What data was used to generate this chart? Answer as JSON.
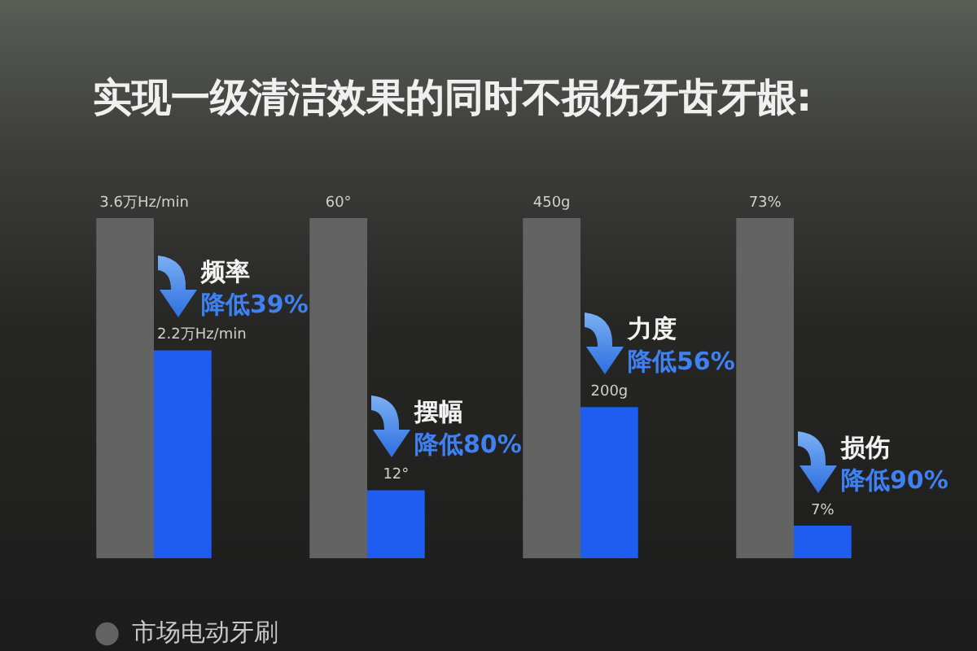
{
  "chart_data": [
    {
      "type": "bar",
      "title": "实现一级清洁效果的同时不损伤牙齿牙龈:",
      "categories": [
        null
      ],
      "series": [
        {
          "name": "市场电动牙刷",
          "color": "#636363",
          "values": [
            3.6
          ],
          "value_labels": [
            "3.6万Hz/min"
          ]
        },
        {
          "color": "#1f5cf0",
          "values": [
            2.2
          ],
          "value_labels": [
            "2.2万Hz/min"
          ]
        }
      ],
      "annotations": [
        "频率",
        "降低39%"
      ],
      "legend": "bottom",
      "tick_labels": false
    },
    {
      "type": "bar",
      "categories": [
        null
      ],
      "series": [
        {
          "color": "#636363",
          "values": [
            60
          ],
          "value_labels": [
            "60°"
          ]
        },
        {
          "color": "#1f5cf0",
          "values": [
            12
          ],
          "value_labels": [
            "12°"
          ]
        }
      ],
      "annotations": [
        "摆幅",
        "降低80%"
      ],
      "tick_labels": false
    },
    {
      "type": "bar",
      "categories": [
        null
      ],
      "series": [
        {
          "color": "#636363",
          "values": [
            450
          ],
          "value_labels": [
            "450g"
          ]
        },
        {
          "color": "#1f5cf0",
          "values": [
            200
          ],
          "value_labels": [
            "200g"
          ]
        }
      ],
      "annotations": [
        "力度",
        "降低56%"
      ],
      "tick_labels": false
    },
    {
      "type": "bar",
      "categories": [
        null
      ],
      "series": [
        {
          "color": "#636363",
          "values": [
            73
          ],
          "value_labels": [
            "73%"
          ]
        },
        {
          "color": "#1f5cf0",
          "values": [
            7
          ],
          "value_labels": [
            "7%"
          ]
        }
      ],
      "annotations": [
        "损伤",
        "降低90%"
      ],
      "tick_labels": false
    }
  ]
}
